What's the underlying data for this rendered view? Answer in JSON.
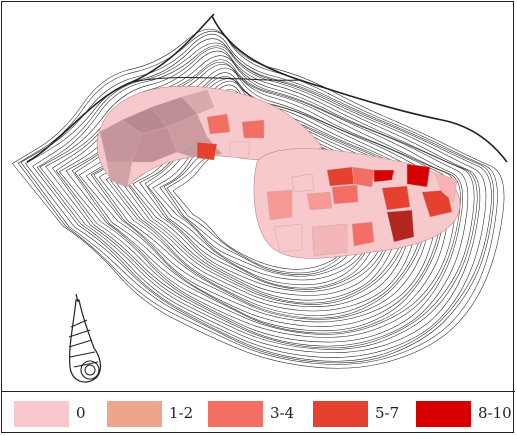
{
  "legend": {
    "items": [
      {
        "label": "0",
        "color": "#f7c9cc"
      },
      {
        "label": "1-2",
        "color": "#eda68c"
      },
      {
        "label": "3-4",
        "color": "#f36f63"
      },
      {
        "label": "5-7",
        "color": "#e5412e"
      },
      {
        "label": "8-10",
        "color": "#d60000"
      }
    ]
  },
  "map": {
    "fill_base_color": "#c99a9f",
    "contour_color": "#222222",
    "icon": "shell-icon"
  }
}
